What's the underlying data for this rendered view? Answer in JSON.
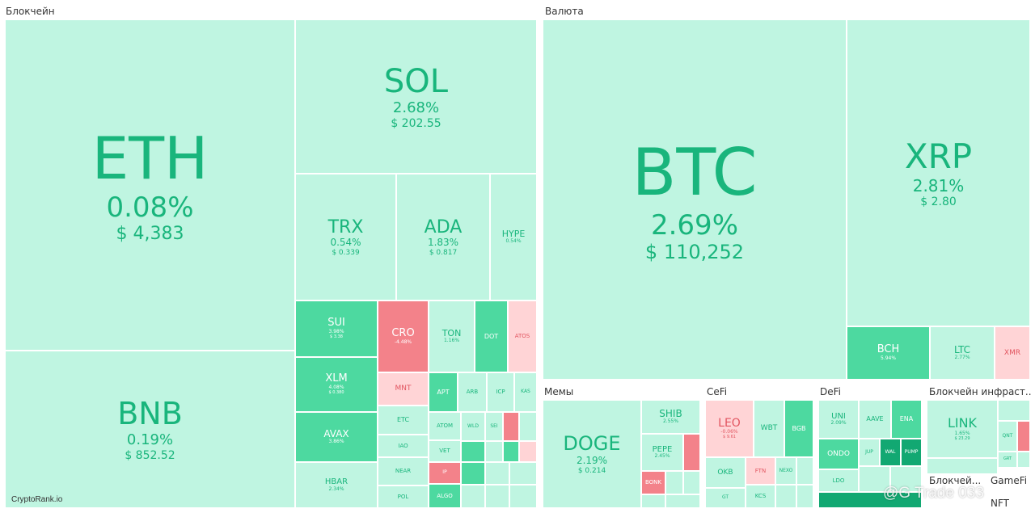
{
  "chart_data": {
    "type": "treemap",
    "sectors": [
      {
        "name": "Блокчейн",
        "items": [
          {
            "symbol": "ETH",
            "change": "0.08%",
            "price": "$ 4,383"
          },
          {
            "symbol": "BNB",
            "change": "0.19%",
            "price": "$ 852.52"
          },
          {
            "symbol": "SOL",
            "change": "2.68%",
            "price": "$ 202.55"
          },
          {
            "symbol": "TRX",
            "change": "0.54%",
            "price": "$ 0.339"
          },
          {
            "symbol": "ADA",
            "change": "1.83%",
            "price": "$ 0.817"
          },
          {
            "symbol": "HYPE",
            "change": "0.54%",
            "price": ""
          },
          {
            "symbol": "SUI",
            "change": "3.98%",
            "price": "$ 3.38"
          },
          {
            "symbol": "XLM",
            "change": "4.08%",
            "price": "$ 0.380"
          },
          {
            "symbol": "AVAX",
            "change": "3.86%",
            "price": ""
          },
          {
            "symbol": "HBAR",
            "change": "2.34%",
            "price": ""
          },
          {
            "symbol": "CRO",
            "change": "-4.48%",
            "price": ""
          },
          {
            "symbol": "MNT",
            "change": "",
            "price": ""
          },
          {
            "symbol": "TON",
            "change": "1.16%",
            "price": ""
          },
          {
            "symbol": "DOT",
            "change": "",
            "price": ""
          },
          {
            "symbol": "ATOS",
            "change": "",
            "price": ""
          },
          {
            "symbol": "APT",
            "change": "",
            "price": ""
          },
          {
            "symbol": "ARB",
            "change": "",
            "price": ""
          },
          {
            "symbol": "ICP",
            "change": "",
            "price": ""
          },
          {
            "symbol": "KAS",
            "change": "",
            "price": ""
          },
          {
            "symbol": "ETC",
            "change": "",
            "price": ""
          },
          {
            "symbol": "ATOM",
            "change": "",
            "price": ""
          },
          {
            "symbol": "IAO",
            "change": "",
            "price": ""
          },
          {
            "symbol": "VET",
            "change": "",
            "price": ""
          },
          {
            "symbol": "NEAR",
            "change": "",
            "price": ""
          },
          {
            "symbol": "IP",
            "change": "",
            "price": ""
          },
          {
            "symbol": "POL",
            "change": "",
            "price": ""
          },
          {
            "symbol": "ALGO",
            "change": "",
            "price": ""
          },
          {
            "symbol": "WLD",
            "change": "",
            "price": ""
          },
          {
            "symbol": "SEI",
            "change": "",
            "price": ""
          }
        ]
      },
      {
        "name": "Валюта",
        "items": [
          {
            "symbol": "BTC",
            "change": "2.69%",
            "price": "$ 110,252"
          },
          {
            "symbol": "XRP",
            "change": "2.81%",
            "price": "$ 2.80"
          },
          {
            "symbol": "BCH",
            "change": "5.94%",
            "price": ""
          },
          {
            "symbol": "LTC",
            "change": "2.77%",
            "price": ""
          },
          {
            "symbol": "XMR",
            "change": "",
            "price": ""
          }
        ]
      },
      {
        "name": "Мемы",
        "items": [
          {
            "symbol": "DOGE",
            "change": "2.19%",
            "price": "$ 0.214"
          },
          {
            "symbol": "SHIB",
            "change": "2.55%",
            "price": ""
          },
          {
            "symbol": "PEPE",
            "change": "2.45%",
            "price": ""
          },
          {
            "symbol": "BONK",
            "change": "",
            "price": ""
          }
        ]
      },
      {
        "name": "CeFi",
        "items": [
          {
            "symbol": "LEO",
            "change": "-0.06%",
            "price": "$ 9.61"
          },
          {
            "symbol": "WBT",
            "change": "",
            "price": ""
          },
          {
            "symbol": "BGB",
            "change": "",
            "price": ""
          },
          {
            "symbol": "OKB",
            "change": "",
            "price": ""
          },
          {
            "symbol": "FTN",
            "change": "",
            "price": ""
          },
          {
            "symbol": "KCS",
            "change": "",
            "price": ""
          },
          {
            "symbol": "GT",
            "change": "",
            "price": ""
          },
          {
            "symbol": "NEXO",
            "change": "",
            "price": ""
          }
        ]
      },
      {
        "name": "DeFi",
        "items": [
          {
            "symbol": "UNI",
            "change": "2.09%",
            "price": ""
          },
          {
            "symbol": "AAVE",
            "change": "",
            "price": ""
          },
          {
            "symbol": "ENA",
            "change": "",
            "price": ""
          },
          {
            "symbol": "ONDO",
            "change": "",
            "price": ""
          },
          {
            "symbol": "JUP",
            "change": "",
            "price": ""
          },
          {
            "symbol": "WAL",
            "change": "",
            "price": ""
          },
          {
            "symbol": "PUMP",
            "change": "",
            "price": ""
          },
          {
            "symbol": "LDO",
            "change": "",
            "price": ""
          }
        ]
      },
      {
        "name": "Блокчейн инфраст...",
        "items": [
          {
            "symbol": "LINK",
            "change": "1.65%",
            "price": "$ 23.29"
          },
          {
            "symbol": "QNT",
            "change": "",
            "price": ""
          },
          {
            "symbol": "GRT",
            "change": "",
            "price": ""
          }
        ]
      },
      {
        "name": "Блокчей...",
        "items": []
      },
      {
        "name": "GameFi",
        "items": []
      },
      {
        "name": "NFT",
        "items": []
      }
    ]
  },
  "colors": {
    "up_light": "#bff5e1",
    "up_mid": "#4dd9a0",
    "up_dark": "#12a872",
    "down_light": "#ffd4d6",
    "down_mid": "#f3828a"
  },
  "branding": {
    "source": "CryptoRank.io",
    "watermark": "@G Trade 033"
  }
}
